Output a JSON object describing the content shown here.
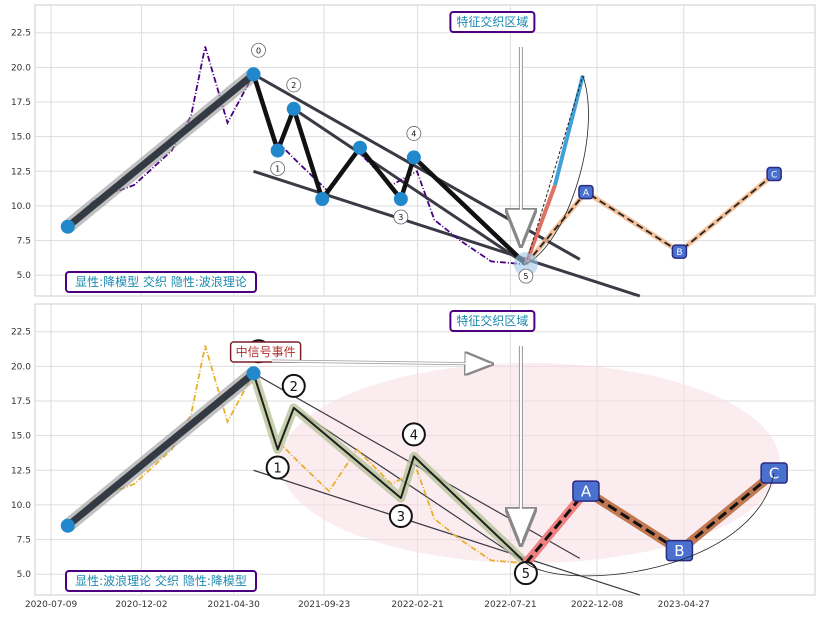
{
  "chart_data": [
    {
      "type": "line",
      "panel": "top",
      "title_box": "特征交织区域",
      "info_box": "显性:降模型 交织 隐性:波浪理论",
      "y_ticks": [
        "5.0",
        "7.5",
        "10.0",
        "12.5",
        "15.0",
        "17.5",
        "20.0",
        "22.5"
      ],
      "ylim": [
        3.5,
        24.5
      ],
      "grid": true,
      "series": [
        {
          "style": "dashdot",
          "color": "#4b0082",
          "x": [
            "2020-08-01",
            "2020-09-20",
            "2020-11-20",
            "2021-01-20",
            "2021-02-20",
            "2021-03-15",
            "2021-04-20",
            "2021-06-01",
            "2021-07-01",
            "2021-08-15",
            "2021-10-01",
            "2021-11-15",
            "2022-01-10",
            "2022-02-20",
            "2022-03-20",
            "2022-05-01",
            "2022-06-20",
            "2022-08-10"
          ],
          "y": [
            8.5,
            10.5,
            11.5,
            14.0,
            16.5,
            21.5,
            16.0,
            19.5,
            15.0,
            13.0,
            11.0,
            14.0,
            11.5,
            12.5,
            9.0,
            7.5,
            6.0,
            5.8
          ]
        }
      ],
      "wave_points": [
        {
          "label": "0",
          "x": "2021-06-01",
          "y": 19.5
        },
        {
          "label": "1",
          "x": "2021-07-10",
          "y": 14.0
        },
        {
          "label": "2",
          "x": "2021-08-05",
          "y": 17.0
        },
        {
          "label": "",
          "x": "2021-09-20",
          "y": 10.5
        },
        {
          "label": "",
          "x": "2021-11-20",
          "y": 14.2
        },
        {
          "label": "3",
          "x": "2022-01-25",
          "y": 10.5
        },
        {
          "label": "4",
          "x": "2022-02-15",
          "y": 13.5
        },
        {
          "label": "5",
          "x": "2022-08-15",
          "y": 5.8
        }
      ],
      "start_point": {
        "x": "2020-08-05",
        "y": 8.5
      },
      "projection": [
        {
          "label": "A",
          "x": "2022-11-20",
          "y": 11.0
        },
        {
          "label": "B",
          "x": "2023-04-20",
          "y": 6.7
        },
        {
          "label": "C",
          "x": "2023-09-20",
          "y": 12.3
        }
      ],
      "arrow_target": {
        "x": "2022-11-15",
        "y": 19.4
      }
    },
    {
      "type": "line",
      "panel": "bottom",
      "title_box": "特征交织区域",
      "info_box": "显性:波浪理论 交织 隐性:降模型",
      "event_box": "中信号事件",
      "x_ticks": [
        "2020-07-09",
        "2020-12-02",
        "2021-04-30",
        "2021-09-23",
        "2022-02-21",
        "2022-07-21",
        "2022-12-08",
        "2023-04-27"
      ],
      "y_ticks": [
        "5.0",
        "7.5",
        "10.0",
        "12.5",
        "15.0",
        "17.5",
        "20.0",
        "22.5"
      ],
      "ylim": [
        3.5,
        24.5
      ],
      "grid": true,
      "series": [
        {
          "style": "dashdot",
          "color": "#e8b030",
          "x": [
            "2020-08-01",
            "2020-09-20",
            "2020-11-20",
            "2021-01-20",
            "2021-02-20",
            "2021-03-15",
            "2021-04-20",
            "2021-06-01",
            "2021-07-01",
            "2021-08-15",
            "2021-10-01",
            "2021-11-15",
            "2022-01-10",
            "2022-02-20",
            "2022-03-20",
            "2022-05-01",
            "2022-06-20",
            "2022-08-10"
          ],
          "y": [
            8.5,
            10.5,
            11.5,
            14.0,
            16.5,
            21.5,
            16.0,
            19.5,
            15.0,
            13.0,
            11.0,
            14.0,
            11.5,
            12.5,
            9.0,
            7.5,
            6.0,
            5.8
          ]
        }
      ],
      "wave_points": [
        {
          "label": "0",
          "x": "2021-06-01",
          "y": 19.5
        },
        {
          "label": "1",
          "x": "2021-07-10",
          "y": 14.0
        },
        {
          "label": "2",
          "x": "2021-08-05",
          "y": 17.0
        },
        {
          "label": "3",
          "x": "2022-01-25",
          "y": 10.5
        },
        {
          "label": "4",
          "x": "2022-02-15",
          "y": 13.5
        },
        {
          "label": "5",
          "x": "2022-08-15",
          "y": 5.8
        }
      ],
      "start_point": {
        "x": "2020-08-05",
        "y": 8.5
      },
      "projection": [
        {
          "label": "A",
          "x": "2022-11-20",
          "y": 11.0
        },
        {
          "label": "B",
          "x": "2023-04-20",
          "y": 6.7
        },
        {
          "label": "C",
          "x": "2023-09-20",
          "y": 12.3
        }
      ]
    }
  ]
}
